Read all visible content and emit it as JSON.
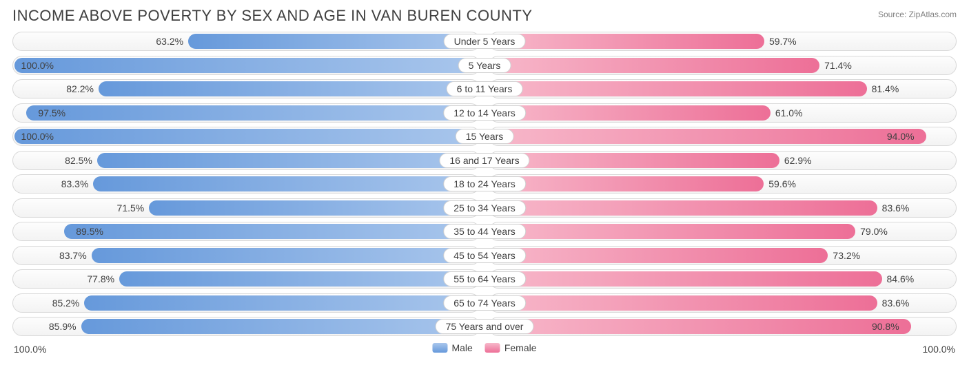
{
  "title": "INCOME ABOVE POVERTY BY SEX AND AGE IN VAN BUREN COUNTY",
  "source": "Source: ZipAtlas.com",
  "axis_max_label": "100.0%",
  "legend": {
    "male": {
      "label": "Male",
      "color_start": "#a9c6ec",
      "color_end": "#6699db"
    },
    "female": {
      "label": "Female",
      "color_start": "#f7b8ca",
      "color_end": "#ed6f97"
    }
  },
  "style": {
    "track_border": "#d8d8d8",
    "track_bg_top": "#fdfdfd",
    "track_bg_bot": "#f3f3f3",
    "text_color": "#404040",
    "axis_max": 100.0,
    "label_threshold": 88.0
  },
  "rows": [
    {
      "category": "Under 5 Years",
      "male": 63.2,
      "female": 59.7
    },
    {
      "category": "5 Years",
      "male": 100.0,
      "female": 71.4
    },
    {
      "category": "6 to 11 Years",
      "male": 82.2,
      "female": 81.4
    },
    {
      "category": "12 to 14 Years",
      "male": 97.5,
      "female": 61.0
    },
    {
      "category": "15 Years",
      "male": 100.0,
      "female": 94.0
    },
    {
      "category": "16 and 17 Years",
      "male": 82.5,
      "female": 62.9
    },
    {
      "category": "18 to 24 Years",
      "male": 83.3,
      "female": 59.6
    },
    {
      "category": "25 to 34 Years",
      "male": 71.5,
      "female": 83.6
    },
    {
      "category": "35 to 44 Years",
      "male": 89.5,
      "female": 79.0
    },
    {
      "category": "45 to 54 Years",
      "male": 83.7,
      "female": 73.2
    },
    {
      "category": "55 to 64 Years",
      "male": 77.8,
      "female": 84.6
    },
    {
      "category": "65 to 74 Years",
      "male": 85.2,
      "female": 83.6
    },
    {
      "category": "75 Years and over",
      "male": 85.9,
      "female": 90.8
    }
  ]
}
